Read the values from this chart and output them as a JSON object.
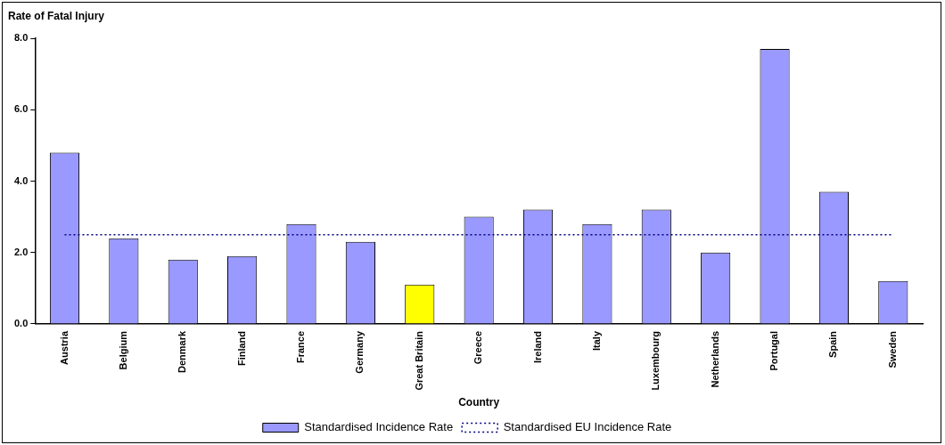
{
  "chart_data": {
    "type": "bar",
    "ylabel": "Rate of Fatal Injury",
    "xlabel": "Country",
    "categories": [
      "Austria",
      "Belgium",
      "Denmark",
      "Finland",
      "France",
      "Germany",
      "Great Britain",
      "Greece",
      "Ireland",
      "Italy",
      "Luxembourg",
      "Netherlands",
      "Portugal",
      "Spain",
      "Sweden"
    ],
    "series": [
      {
        "name": "Standardised Incidence Rate",
        "color": "#9999ff",
        "colors": [
          "#9999ff",
          "#9999ff",
          "#9999ff",
          "#9999ff",
          "#9999ff",
          "#9999ff",
          "#ffff00",
          "#9999ff",
          "#9999ff",
          "#9999ff",
          "#9999ff",
          "#9999ff",
          "#9999ff",
          "#9999ff",
          "#9999ff"
        ],
        "values": [
          4.8,
          2.4,
          1.8,
          1.9,
          2.8,
          2.3,
          1.1,
          3.0,
          3.2,
          2.8,
          3.2,
          2.0,
          7.7,
          3.7,
          1.2
        ]
      }
    ],
    "ref_lines": [
      {
        "axis": "y",
        "value": 2.5,
        "label": "Standardised EU Incidence Rate",
        "color": "#000080",
        "line_style": "dotted"
      }
    ],
    "ylim": [
      0,
      8
    ],
    "yticks": [
      {
        "value": 0,
        "label": "0.0"
      },
      {
        "value": 2,
        "label": "2.0"
      },
      {
        "value": 4,
        "label": "4.0"
      },
      {
        "value": 6,
        "label": "6.0"
      },
      {
        "value": 8,
        "label": "8.0"
      }
    ],
    "grid": false,
    "legend": "bottom"
  }
}
